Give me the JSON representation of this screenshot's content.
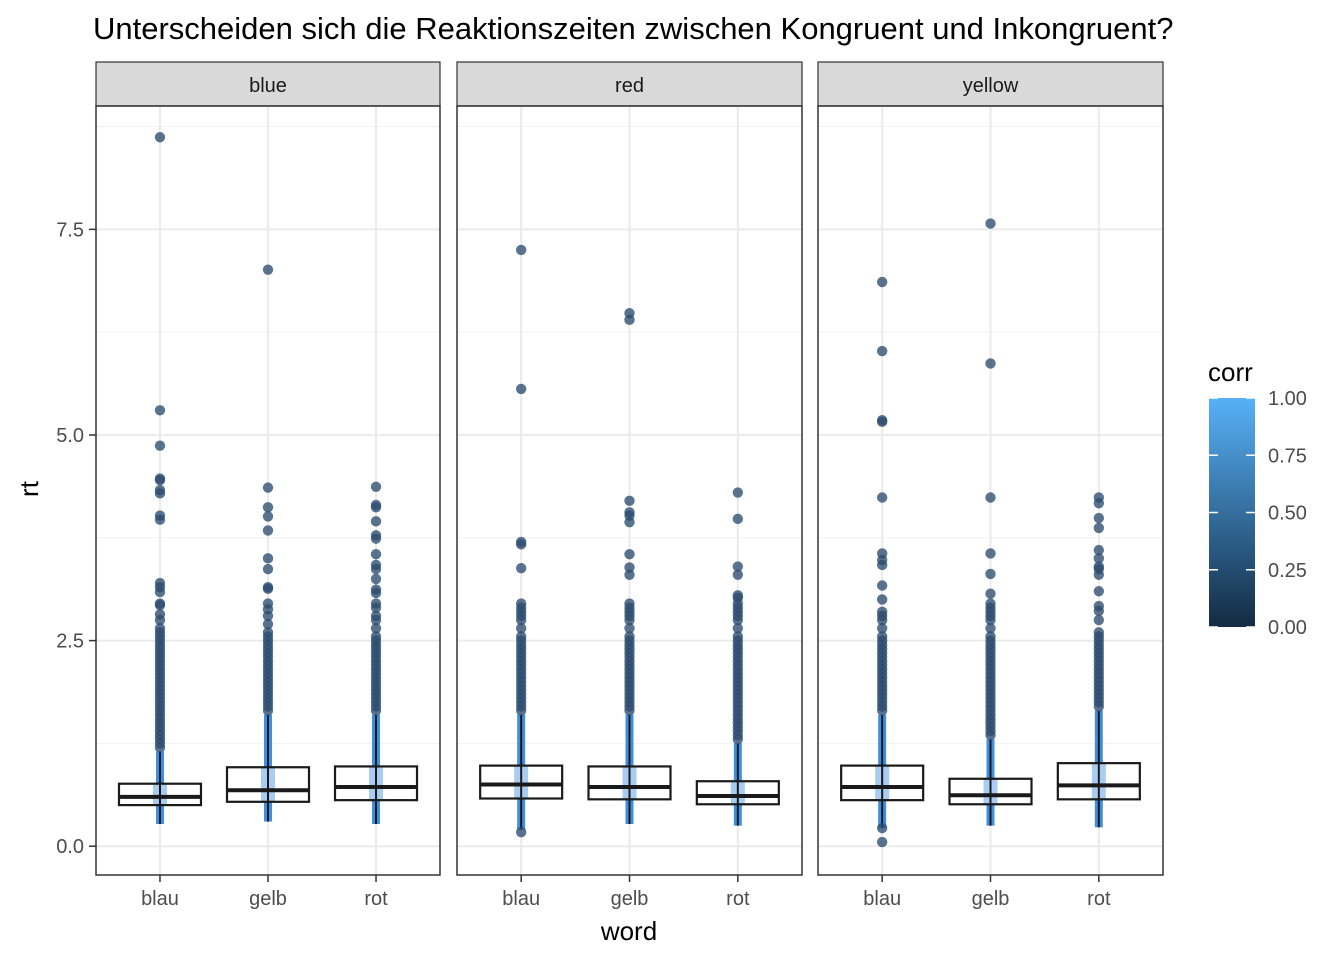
{
  "chart_data": {
    "type": "boxplot",
    "title": "Unterscheiden sich die Reaktionszeiten zwischen Kongruent und Inkongruent?",
    "xlabel": "word",
    "ylabel": "rt",
    "categories": [
      "blau",
      "gelb",
      "rot"
    ],
    "ylim": [
      -0.35,
      9.0
    ],
    "yticks": [
      0.0,
      2.5,
      5.0,
      7.5
    ],
    "ytick_labels": [
      "0.0",
      "2.5",
      "5.0",
      "7.5"
    ],
    "grid": true,
    "facets": [
      {
        "name": "blue",
        "boxes": [
          {
            "word": "blau",
            "q1": 0.5,
            "median": 0.6,
            "q3": 0.76,
            "min": 0.27,
            "max": 1.15,
            "outliers": [
              8.62,
              5.3,
              4.87,
              4.47,
              4.45,
              4.33,
              4.29,
              4.02,
              3.97,
              3.2,
              3.15,
              3.09,
              2.95,
              2.93,
              2.82,
              2.75,
              2.65,
              2.6,
              2.55,
              2.5,
              2.45,
              2.4,
              2.35,
              2.3,
              2.25,
              2.2,
              2.15,
              2.1,
              2.05,
              2.0,
              1.95,
              1.9,
              1.85,
              1.8,
              1.75,
              1.7,
              1.65,
              1.6,
              1.55,
              1.5,
              1.45,
              1.4,
              1.35,
              1.3,
              1.25,
              1.2
            ]
          },
          {
            "word": "gelb",
            "q1": 0.54,
            "median": 0.68,
            "q3": 0.96,
            "min": 0.3,
            "max": 1.6,
            "outliers": [
              7.01,
              4.36,
              4.12,
              4.01,
              3.84,
              3.5,
              3.37,
              3.15,
              3.13,
              2.95,
              2.88,
              2.8,
              2.7,
              2.6,
              2.55,
              2.5,
              2.45,
              2.4,
              2.35,
              2.3,
              2.25,
              2.2,
              2.15,
              2.1,
              2.05,
              2.0,
              1.95,
              1.9,
              1.85,
              1.8,
              1.75,
              1.7,
              1.65
            ]
          },
          {
            "word": "rot",
            "q1": 0.56,
            "median": 0.72,
            "q3": 0.97,
            "min": 0.27,
            "max": 1.6,
            "outliers": [
              4.37,
              4.15,
              4.12,
              3.95,
              3.78,
              3.74,
              3.55,
              3.42,
              3.37,
              3.25,
              3.12,
              3.08,
              2.95,
              2.9,
              2.8,
              2.75,
              2.65,
              2.55,
              2.5,
              2.45,
              2.4,
              2.35,
              2.3,
              2.25,
              2.2,
              2.15,
              2.1,
              2.05,
              2.0,
              1.95,
              1.9,
              1.85,
              1.8,
              1.75,
              1.7,
              1.65
            ]
          }
        ]
      },
      {
        "name": "red",
        "boxes": [
          {
            "word": "blau",
            "q1": 0.58,
            "median": 0.75,
            "q3": 0.98,
            "min": 0.2,
            "max": 1.6,
            "outliers": [
              7.25,
              5.56,
              3.7,
              3.67,
              3.38,
              2.95,
              2.9,
              2.85,
              2.8,
              2.75,
              2.65,
              2.55,
              2.5,
              2.45,
              2.4,
              2.35,
              2.3,
              2.25,
              2.2,
              2.15,
              2.1,
              2.05,
              2.0,
              1.95,
              1.9,
              1.85,
              1.8,
              1.75,
              1.7,
              1.65,
              0.17
            ]
          },
          {
            "word": "gelb",
            "q1": 0.57,
            "median": 0.72,
            "q3": 0.97,
            "min": 0.27,
            "max": 1.6,
            "outliers": [
              6.48,
              6.4,
              4.2,
              4.06,
              4.02,
              3.94,
              3.55,
              3.39,
              3.3,
              2.95,
              2.9,
              2.85,
              2.8,
              2.75,
              2.65,
              2.55,
              2.5,
              2.45,
              2.4,
              2.35,
              2.3,
              2.25,
              2.2,
              2.15,
              2.1,
              2.05,
              2.0,
              1.95,
              1.9,
              1.85,
              1.8,
              1.75,
              1.7,
              1.65
            ]
          },
          {
            "word": "rot",
            "q1": 0.51,
            "median": 0.61,
            "q3": 0.79,
            "min": 0.25,
            "max": 1.25,
            "outliers": [
              4.3,
              3.98,
              3.4,
              3.3,
              3.05,
              3.02,
              2.95,
              2.9,
              2.85,
              2.8,
              2.75,
              2.65,
              2.55,
              2.5,
              2.45,
              2.4,
              2.35,
              2.3,
              2.25,
              2.2,
              2.15,
              2.1,
              2.05,
              2.0,
              1.95,
              1.9,
              1.85,
              1.8,
              1.75,
              1.7,
              1.65,
              1.6,
              1.55,
              1.5,
              1.45,
              1.4,
              1.35,
              1.3
            ]
          }
        ]
      },
      {
        "name": "yellow",
        "boxes": [
          {
            "word": "blau",
            "q1": 0.56,
            "median": 0.72,
            "q3": 0.98,
            "min": 0.22,
            "max": 1.6,
            "outliers": [
              6.86,
              6.02,
              5.18,
              5.16,
              4.24,
              3.56,
              3.48,
              3.42,
              3.17,
              3.0,
              2.85,
              2.8,
              2.75,
              2.65,
              2.55,
              2.5,
              2.45,
              2.4,
              2.35,
              2.3,
              2.25,
              2.2,
              2.15,
              2.1,
              2.05,
              2.0,
              1.95,
              1.9,
              1.85,
              1.8,
              1.75,
              1.7,
              1.65,
              0.22,
              0.05
            ]
          },
          {
            "word": "gelb",
            "q1": 0.51,
            "median": 0.62,
            "q3": 0.82,
            "min": 0.25,
            "max": 1.3,
            "outliers": [
              7.57,
              5.87,
              4.24,
              3.56,
              3.31,
              3.07,
              2.95,
              2.9,
              2.85,
              2.8,
              2.75,
              2.65,
              2.55,
              2.5,
              2.45,
              2.4,
              2.35,
              2.3,
              2.25,
              2.2,
              2.15,
              2.1,
              2.05,
              2.0,
              1.95,
              1.9,
              1.85,
              1.8,
              1.75,
              1.7,
              1.65,
              1.6,
              1.55,
              1.5,
              1.45,
              1.4,
              1.35
            ]
          },
          {
            "word": "rot",
            "q1": 0.57,
            "median": 0.74,
            "q3": 1.01,
            "min": 0.23,
            "max": 1.65,
            "outliers": [
              4.24,
              4.17,
              3.99,
              3.87,
              3.6,
              3.5,
              3.4,
              3.37,
              3.3,
              3.1,
              2.92,
              2.86,
              2.75,
              2.6,
              2.55,
              2.5,
              2.45,
              2.4,
              2.35,
              2.3,
              2.25,
              2.2,
              2.15,
              2.1,
              2.05,
              2.0,
              1.95,
              1.9,
              1.85,
              1.8,
              1.75,
              1.7
            ]
          }
        ]
      }
    ],
    "legend": {
      "title": "corr",
      "type": "colorbar",
      "placement": "right",
      "range": [
        0.0,
        1.0
      ],
      "ticks": [
        0.0,
        0.25,
        0.5,
        0.75,
        1.0
      ],
      "tick_labels": [
        "0.00",
        "0.25",
        "0.50",
        "0.75",
        "1.00"
      ],
      "low_color": "#132b43",
      "high_color": "#56b1f7"
    },
    "colors": {
      "point_color": "#2b4c70",
      "jitter_color": "#3f8fe0",
      "box_line": "#1a1a1a",
      "strip_fill": "#d9d9d9",
      "grid": "#ebebeb"
    }
  }
}
